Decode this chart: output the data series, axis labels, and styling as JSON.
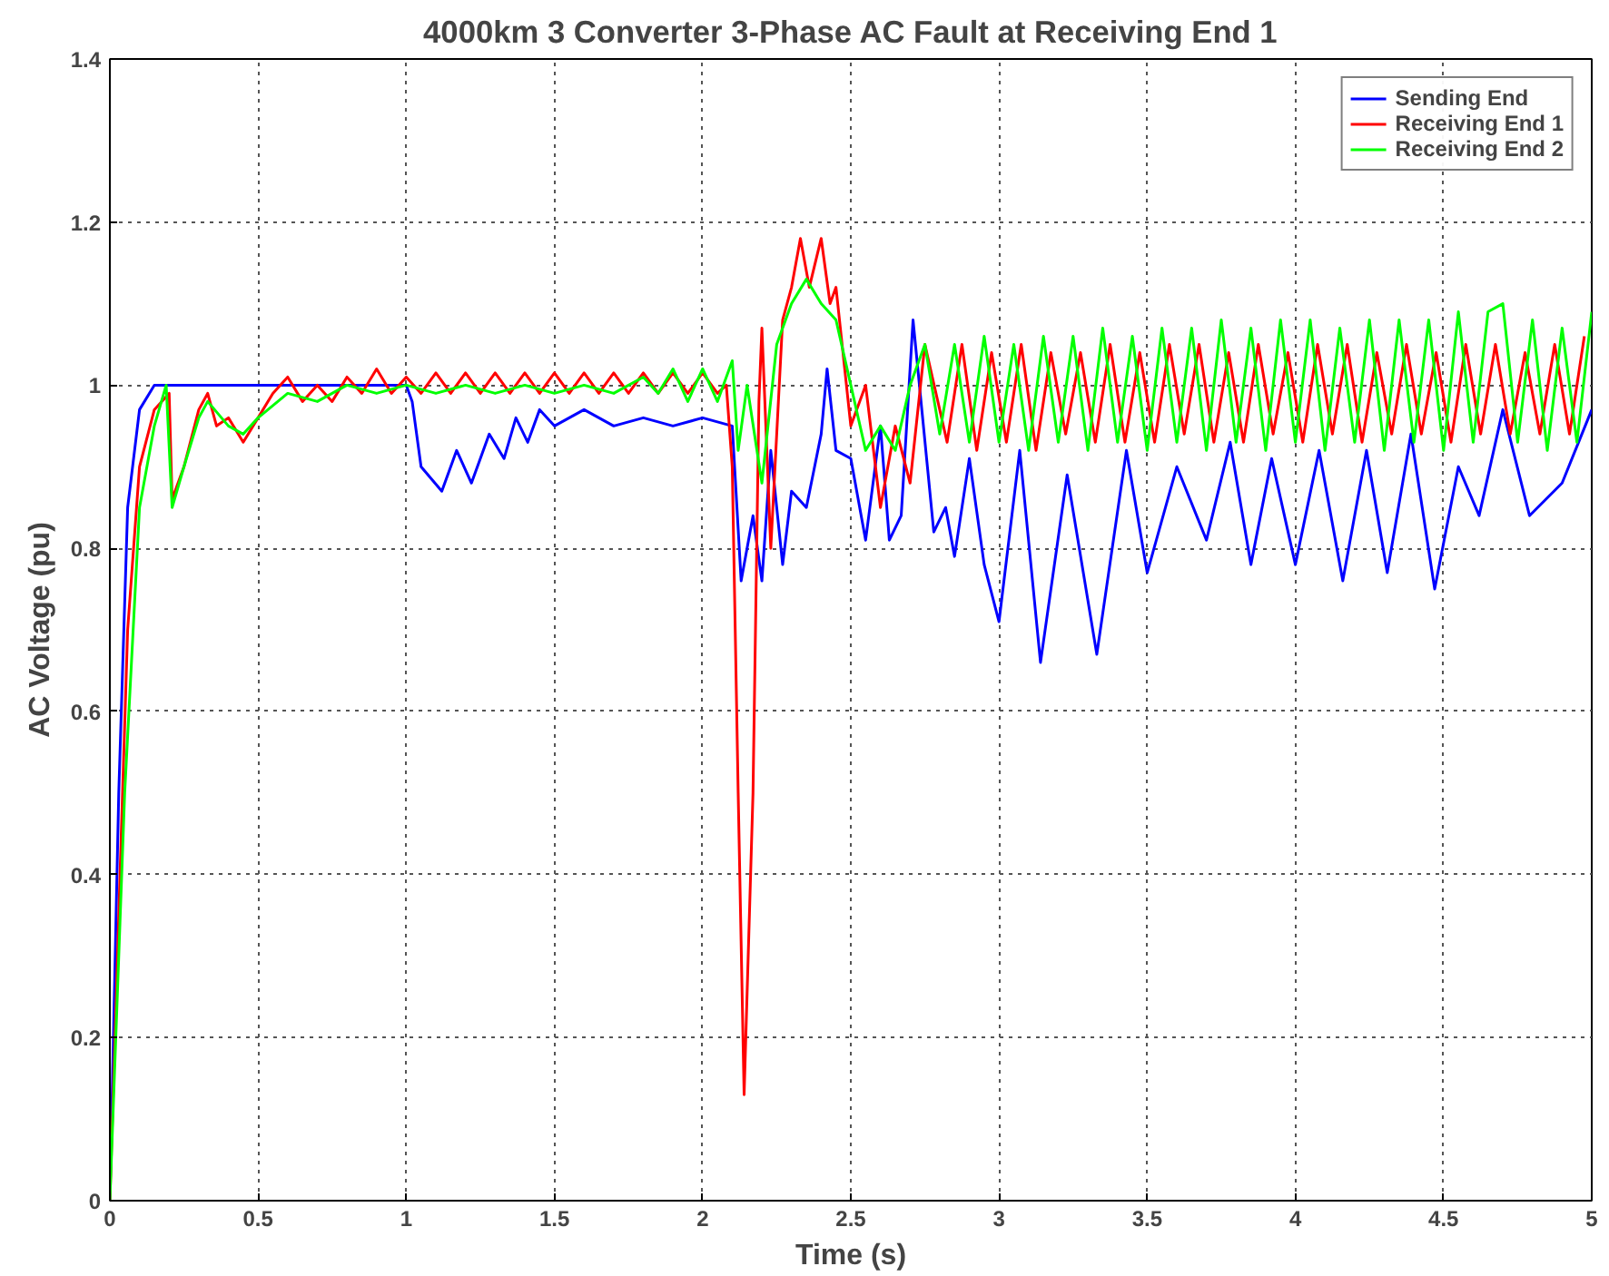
{
  "chart_data": {
    "type": "line",
    "title": "4000km 3 Converter 3-Phase AC Fault at Receiving End 1",
    "xlabel": "Time (s)",
    "ylabel": "AC Voltage (pu)",
    "xlim": [
      0,
      5
    ],
    "ylim": [
      0,
      1.4
    ],
    "xticks": [
      0,
      0.5,
      1,
      1.5,
      2,
      2.5,
      3,
      3.5,
      4,
      4.5,
      5
    ],
    "yticks": [
      0,
      0.2,
      0.4,
      0.6,
      0.8,
      1,
      1.2,
      1.4
    ],
    "grid": true,
    "legend": "top right",
    "series": [
      {
        "name": "Sending End",
        "color": "#0000ff",
        "x": [
          0,
          0.03,
          0.06,
          0.1,
          0.15,
          0.5,
          1.0,
          1.02,
          1.05,
          1.12,
          1.17,
          1.22,
          1.28,
          1.33,
          1.37,
          1.41,
          1.45,
          1.5,
          1.6,
          1.7,
          1.8,
          1.9,
          2.0,
          2.1,
          2.13,
          2.17,
          2.2,
          2.23,
          2.27,
          2.3,
          2.35,
          2.4,
          2.42,
          2.45,
          2.5,
          2.55,
          2.6,
          2.63,
          2.67,
          2.71,
          2.78,
          2.82,
          2.85,
          2.9,
          2.95,
          3.0,
          3.07,
          3.14,
          3.23,
          3.33,
          3.43,
          3.5,
          3.6,
          3.7,
          3.78,
          3.85,
          3.92,
          4.0,
          4.08,
          4.16,
          4.24,
          4.31,
          4.39,
          4.47,
          4.55,
          4.62,
          4.7,
          4.79,
          4.9,
          5.0
        ],
        "values": [
          0,
          0.5,
          0.85,
          0.97,
          1.0,
          1.0,
          1.0,
          0.98,
          0.9,
          0.87,
          0.92,
          0.88,
          0.94,
          0.91,
          0.96,
          0.93,
          0.97,
          0.95,
          0.97,
          0.95,
          0.96,
          0.95,
          0.96,
          0.95,
          0.76,
          0.84,
          0.76,
          0.92,
          0.78,
          0.87,
          0.85,
          0.94,
          1.02,
          0.92,
          0.91,
          0.81,
          0.95,
          0.81,
          0.84,
          1.08,
          0.82,
          0.85,
          0.79,
          0.91,
          0.78,
          0.71,
          0.92,
          0.66,
          0.89,
          0.67,
          0.92,
          0.77,
          0.9,
          0.81,
          0.93,
          0.78,
          0.91,
          0.78,
          0.92,
          0.76,
          0.92,
          0.77,
          0.94,
          0.75,
          0.9,
          0.84,
          0.97,
          0.84,
          0.88,
          0.97
        ]
      },
      {
        "name": "Receiving End 1",
        "color": "#ff0000",
        "x": [
          0,
          0.06,
          0.1,
          0.15,
          0.2,
          0.21,
          0.25,
          0.3,
          0.33,
          0.36,
          0.4,
          0.45,
          0.5,
          0.55,
          0.6,
          0.65,
          0.7,
          0.75,
          0.8,
          0.85,
          0.9,
          0.95,
          1.0,
          1.05,
          1.1,
          1.15,
          1.2,
          1.25,
          1.3,
          1.35,
          1.4,
          1.45,
          1.5,
          1.55,
          1.6,
          1.65,
          1.7,
          1.75,
          1.8,
          1.85,
          1.9,
          1.95,
          2.0,
          2.05,
          2.08,
          2.1,
          2.12,
          2.14,
          2.17,
          2.19,
          2.2,
          2.23,
          2.27,
          2.3,
          2.33,
          2.36,
          2.4,
          2.43,
          2.45,
          2.5,
          2.55,
          2.6,
          2.65,
          2.7,
          2.75,
          2.825,
          2.875,
          2.925,
          2.975,
          3.025,
          3.075,
          3.125,
          3.175,
          3.225,
          3.275,
          3.325,
          3.375,
          3.425,
          3.475,
          3.525,
          3.575,
          3.625,
          3.675,
          3.725,
          3.775,
          3.825,
          3.875,
          3.925,
          3.975,
          4.025,
          4.075,
          4.125,
          4.175,
          4.225,
          4.275,
          4.325,
          4.375,
          4.425,
          4.475,
          4.525,
          4.575,
          4.625,
          4.675,
          4.725,
          4.775,
          4.825,
          4.875,
          4.925,
          4.975
        ],
        "values": [
          0,
          0.7,
          0.9,
          0.97,
          0.99,
          0.86,
          0.9,
          0.97,
          0.99,
          0.95,
          0.96,
          0.93,
          0.96,
          0.99,
          1.01,
          0.98,
          1.0,
          0.98,
          1.01,
          0.99,
          1.02,
          0.99,
          1.01,
          0.99,
          1.015,
          0.99,
          1.015,
          0.99,
          1.015,
          0.99,
          1.015,
          0.99,
          1.015,
          0.99,
          1.015,
          0.99,
          1.015,
          0.99,
          1.015,
          0.99,
          1.015,
          0.99,
          1.015,
          0.99,
          1.0,
          0.9,
          0.5,
          0.13,
          0.5,
          0.98,
          1.07,
          0.8,
          1.08,
          1.12,
          1.18,
          1.12,
          1.18,
          1.1,
          1.12,
          0.95,
          1.0,
          0.85,
          0.95,
          0.88,
          1.05,
          0.93,
          1.05,
          0.92,
          1.04,
          0.93,
          1.05,
          0.92,
          1.04,
          0.94,
          1.04,
          0.93,
          1.05,
          0.93,
          1.04,
          0.93,
          1.05,
          0.94,
          1.05,
          0.93,
          1.04,
          0.93,
          1.05,
          0.94,
          1.04,
          0.93,
          1.05,
          0.94,
          1.05,
          0.93,
          1.04,
          0.94,
          1.05,
          0.94,
          1.04,
          0.93,
          1.05,
          0.94,
          1.05,
          0.94,
          1.04,
          0.94,
          1.05,
          0.94,
          1.06
        ]
      },
      {
        "name": "Receiving End 2",
        "color": "#00ff00",
        "x": [
          0,
          0.05,
          0.1,
          0.15,
          0.19,
          0.21,
          0.25,
          0.3,
          0.33,
          0.4,
          0.45,
          0.5,
          0.6,
          0.7,
          0.8,
          0.9,
          1.0,
          1.1,
          1.2,
          1.3,
          1.4,
          1.5,
          1.6,
          1.7,
          1.8,
          1.85,
          1.9,
          1.95,
          2.0,
          2.05,
          2.1,
          2.12,
          2.15,
          2.2,
          2.25,
          2.3,
          2.35,
          2.4,
          2.45,
          2.5,
          2.55,
          2.6,
          2.65,
          2.7,
          2.75,
          2.8,
          2.85,
          2.9,
          2.95,
          3.0,
          3.05,
          3.1,
          3.15,
          3.2,
          3.25,
          3.3,
          3.35,
          3.4,
          3.45,
          3.5,
          3.55,
          3.6,
          3.65,
          3.7,
          3.75,
          3.8,
          3.85,
          3.9,
          3.95,
          4.0,
          4.05,
          4.1,
          4.15,
          4.2,
          4.25,
          4.3,
          4.35,
          4.4,
          4.45,
          4.5,
          4.55,
          4.6,
          4.65,
          4.7,
          4.75,
          4.8,
          4.85,
          4.9,
          4.95,
          5.0
        ],
        "values": [
          0,
          0.5,
          0.85,
          0.95,
          1.0,
          0.85,
          0.9,
          0.96,
          0.98,
          0.95,
          0.94,
          0.96,
          0.99,
          0.98,
          1.0,
          0.99,
          1.0,
          0.99,
          1.0,
          0.99,
          1.0,
          0.99,
          1.0,
          0.99,
          1.01,
          0.99,
          1.02,
          0.98,
          1.02,
          0.98,
          1.03,
          0.92,
          1.0,
          0.88,
          1.05,
          1.1,
          1.13,
          1.1,
          1.08,
          1.0,
          0.92,
          0.95,
          0.92,
          1.0,
          1.05,
          0.94,
          1.05,
          0.93,
          1.06,
          0.93,
          1.05,
          0.92,
          1.06,
          0.93,
          1.06,
          0.92,
          1.07,
          0.93,
          1.06,
          0.92,
          1.07,
          0.93,
          1.07,
          0.92,
          1.08,
          0.93,
          1.07,
          0.92,
          1.08,
          0.93,
          1.08,
          0.92,
          1.07,
          0.93,
          1.08,
          0.92,
          1.08,
          0.93,
          1.08,
          0.92,
          1.09,
          0.93,
          1.09,
          1.1,
          0.93,
          1.08,
          0.92,
          1.07,
          0.93,
          1.09
        ]
      }
    ]
  }
}
